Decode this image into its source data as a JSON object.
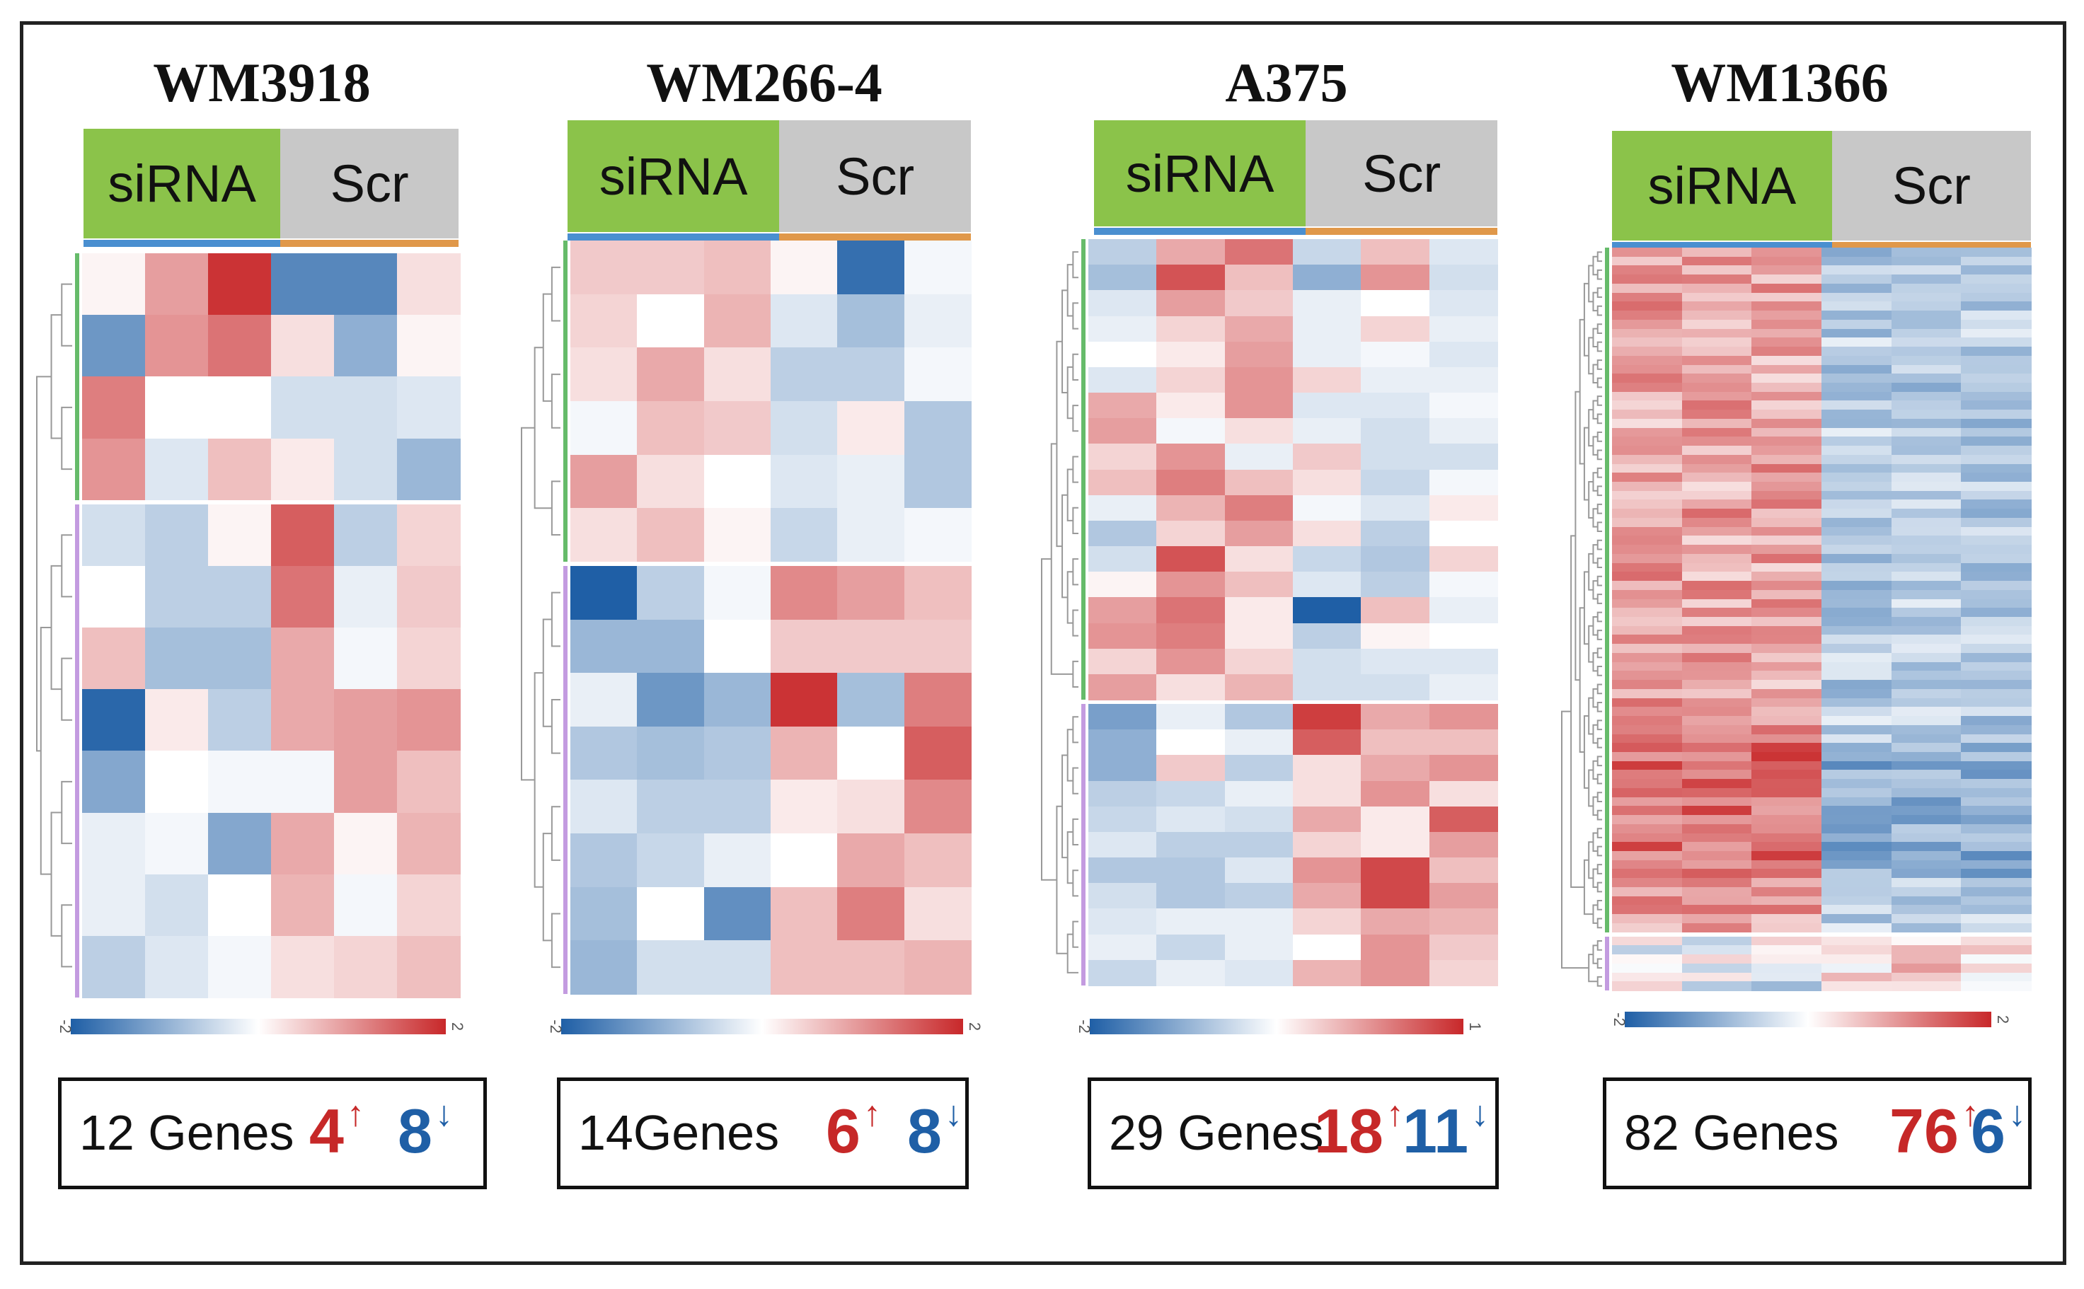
{
  "chart_data": [
    {
      "type": "heatmap",
      "title": "WM3918",
      "columns": [
        "siRNA",
        "siRNA",
        "siRNA",
        "Scr",
        "Scr",
        "Scr"
      ],
      "group_labels": [
        "siRNA",
        "Scr"
      ],
      "cluster_sizes": [
        4,
        8
      ],
      "values": [
        [
          0.1,
          0.9,
          1.9,
          -1.5,
          -1.5,
          0.3
        ],
        [
          -1.3,
          1.0,
          1.3,
          0.3,
          -1.0,
          0.1
        ],
        [
          1.2,
          0.0,
          0.0,
          -0.4,
          -0.4,
          -0.3
        ],
        [
          1.0,
          -0.3,
          0.6,
          0.2,
          -0.4,
          -0.9
        ],
        [
          -0.4,
          -0.6,
          0.1,
          1.5,
          -0.6,
          0.4
        ],
        [
          0.0,
          -0.6,
          -0.6,
          1.3,
          -0.2,
          0.5
        ],
        [
          0.6,
          -0.8,
          -0.8,
          0.8,
          -0.1,
          0.4
        ],
        [
          -1.9,
          0.2,
          -0.6,
          0.8,
          0.9,
          1.0
        ],
        [
          -1.1,
          0.0,
          -0.1,
          -0.1,
          0.9,
          0.6
        ],
        [
          -0.2,
          -0.1,
          -1.1,
          0.8,
          0.1,
          0.7
        ],
        [
          -0.2,
          -0.4,
          0.0,
          0.7,
          -0.1,
          0.4
        ],
        [
          -0.6,
          -0.3,
          -0.1,
          0.3,
          0.4,
          0.6
        ]
      ],
      "scale": {
        "min_label": "-2",
        "max_label": "2"
      },
      "genes_label": "12 Genes",
      "up_count": "4",
      "down_count": "8"
    },
    {
      "type": "heatmap",
      "title": "WM266-4",
      "columns": [
        "siRNA",
        "siRNA",
        "siRNA",
        "Scr",
        "Scr",
        "Scr"
      ],
      "group_labels": [
        "siRNA",
        "Scr"
      ],
      "cluster_sizes": [
        6,
        8
      ],
      "values": [
        [
          0.5,
          0.5,
          0.6,
          0.1,
          -1.8,
          -0.1
        ],
        [
          0.4,
          0.0,
          0.7,
          -0.3,
          -0.8,
          -0.2
        ],
        [
          0.3,
          0.8,
          0.3,
          -0.6,
          -0.6,
          -0.1
        ],
        [
          -0.1,
          0.6,
          0.5,
          -0.4,
          0.2,
          -0.7
        ],
        [
          0.9,
          0.3,
          0.0,
          -0.3,
          -0.2,
          -0.7
        ],
        [
          0.3,
          0.6,
          0.1,
          -0.5,
          -0.2,
          -0.1
        ],
        [
          -2.0,
          -0.6,
          -0.1,
          1.1,
          0.9,
          0.6
        ],
        [
          -0.9,
          -0.9,
          0.0,
          0.5,
          0.5,
          0.5
        ],
        [
          -0.2,
          -1.3,
          -0.9,
          1.9,
          -0.8,
          1.2
        ],
        [
          -0.7,
          -0.8,
          -0.7,
          0.7,
          0.0,
          1.5
        ],
        [
          -0.3,
          -0.6,
          -0.6,
          0.2,
          0.3,
          1.1
        ],
        [
          -0.7,
          -0.5,
          -0.2,
          0.0,
          0.8,
          0.6
        ],
        [
          -0.8,
          0.0,
          -1.4,
          0.6,
          1.2,
          0.3
        ],
        [
          -0.9,
          -0.4,
          -0.4,
          0.6,
          0.6,
          0.7
        ]
      ],
      "scale": {
        "min_label": "-2",
        "max_label": "2"
      },
      "genes_label": "14Genes",
      "up_count": "6",
      "down_count": "8"
    },
    {
      "type": "heatmap",
      "title": "A375",
      "columns": [
        "siRNA",
        "siRNA",
        "siRNA",
        "Scr",
        "Scr",
        "Scr"
      ],
      "group_labels": [
        "siRNA",
        "Scr"
      ],
      "cluster_sizes": [
        18,
        11
      ],
      "values": [
        [
          -0.6,
          0.8,
          1.3,
          -0.5,
          0.6,
          -0.3
        ],
        [
          -0.8,
          1.6,
          0.6,
          -1.0,
          1.0,
          -0.4
        ],
        [
          -0.3,
          0.9,
          0.5,
          -0.2,
          0.0,
          -0.3
        ],
        [
          -0.2,
          0.4,
          0.8,
          -0.2,
          0.4,
          -0.2
        ],
        [
          0.0,
          0.2,
          0.9,
          -0.2,
          -0.1,
          -0.3
        ],
        [
          -0.3,
          0.4,
          1.0,
          0.4,
          -0.2,
          -0.2
        ],
        [
          0.8,
          0.2,
          1.0,
          -0.3,
          -0.3,
          -0.1
        ],
        [
          0.9,
          -0.1,
          0.3,
          -0.2,
          -0.4,
          -0.2
        ],
        [
          0.4,
          1.0,
          -0.2,
          0.5,
          -0.4,
          -0.4
        ],
        [
          0.6,
          1.2,
          0.6,
          0.3,
          -0.5,
          -0.1
        ],
        [
          -0.2,
          0.7,
          1.2,
          -0.1,
          -0.3,
          0.2
        ],
        [
          -0.7,
          0.4,
          0.9,
          0.3,
          -0.6,
          0.0
        ],
        [
          -0.4,
          1.6,
          0.3,
          -0.5,
          -0.7,
          0.4
        ],
        [
          0.1,
          1.0,
          0.6,
          -0.3,
          -0.6,
          -0.1
        ],
        [
          0.9,
          1.3,
          0.2,
          -2.0,
          0.6,
          -0.2
        ],
        [
          1.0,
          1.2,
          0.2,
          -0.6,
          0.1,
          0.0
        ],
        [
          0.4,
          1.0,
          0.4,
          -0.4,
          -0.3,
          -0.3
        ],
        [
          0.9,
          0.3,
          0.7,
          -0.4,
          -0.4,
          -0.2
        ],
        [
          -1.2,
          -0.2,
          -0.7,
          1.8,
          0.8,
          1.0
        ],
        [
          -1.0,
          0.0,
          -0.2,
          1.5,
          0.6,
          0.6
        ],
        [
          -1.0,
          0.5,
          -0.6,
          0.3,
          0.8,
          1.0
        ],
        [
          -0.6,
          -0.5,
          -0.2,
          0.3,
          1.0,
          0.3
        ],
        [
          -0.5,
          -0.3,
          -0.4,
          0.8,
          0.2,
          1.5
        ],
        [
          -0.3,
          -0.6,
          -0.6,
          0.4,
          0.2,
          0.9
        ],
        [
          -0.7,
          -0.7,
          -0.3,
          1.0,
          1.7,
          0.6
        ],
        [
          -0.4,
          -0.7,
          -0.6,
          0.8,
          1.7,
          0.9
        ],
        [
          -0.3,
          -0.2,
          -0.2,
          0.4,
          0.8,
          0.7
        ],
        [
          -0.2,
          -0.5,
          -0.2,
          0.0,
          1.0,
          0.5
        ],
        [
          -0.5,
          -0.2,
          -0.3,
          0.7,
          1.0,
          0.4
        ]
      ],
      "scale": {
        "min_label": "-2",
        "max_label": "1"
      },
      "genes_label": "29 Genes",
      "up_count": "18",
      "down_count": "11"
    },
    {
      "type": "heatmap",
      "title": "WM1366",
      "columns": [
        "siRNA",
        "siRNA",
        "siRNA",
        "Scr",
        "Scr",
        "Scr"
      ],
      "group_labels": [
        "siRNA",
        "Scr"
      ],
      "cluster_sizes": [
        76,
        6
      ],
      "values": "82 genes x 6 samples; siRNA columns predominantly red (up), Scr columns predominantly blue (down)",
      "scale": {
        "min_label": "-2",
        "max_label": "2"
      },
      "genes_label": "82 Genes",
      "up_count": "76",
      "down_count": "6"
    }
  ],
  "colors": {
    "low": "#1f5fa6",
    "mid": "#ffffff",
    "high": "#c8282a",
    "sirna_header": "#8bc34a",
    "scr_header": "#c8c8c8",
    "cluster_up": "#66bb6a",
    "cluster_down": "#c39be0",
    "sirna_bar": "#4a8fd0",
    "scr_bar": "#e0984a"
  }
}
